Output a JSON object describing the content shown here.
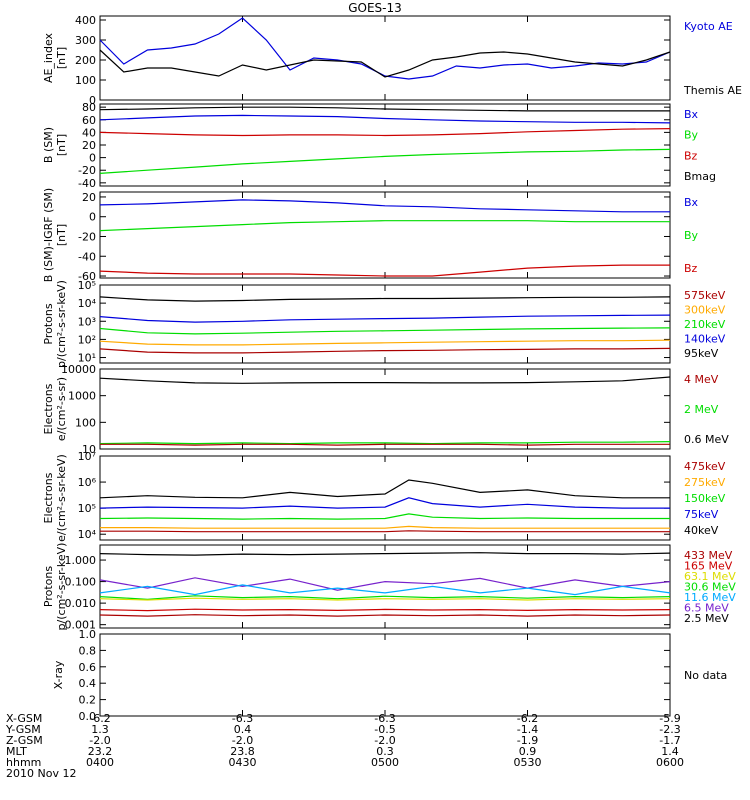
{
  "title": "GOES-13",
  "colors": {
    "black": "#000000",
    "blue": "#0000dd",
    "green": "#00dd00",
    "red": "#cc0000",
    "orange": "#ffaa00",
    "purple": "#7722cc",
    "cyan": "#00aaff",
    "yellow": "#dddd00",
    "darkred": "#aa0000"
  },
  "chart_data": [
    {
      "type": "line",
      "ylabel": [
        "AE_index",
        "[nT]"
      ],
      "yscale": "linear",
      "ylim": [
        0,
        420
      ],
      "yticks": [
        "0",
        "100",
        "200",
        "300",
        "400"
      ],
      "legend": [
        {
          "text": "Kyoto AE",
          "color": "blue"
        },
        {
          "text": "Themis AE",
          "color": "black"
        }
      ],
      "x": [
        0,
        5,
        10,
        15,
        20,
        25,
        30,
        35,
        40,
        45,
        50,
        55,
        60,
        65,
        70,
        75,
        80,
        85,
        90,
        95,
        100,
        105,
        110,
        115,
        120
      ],
      "series": [
        {
          "name": "Kyoto AE",
          "color": "blue",
          "values": [
            300,
            180,
            250,
            260,
            280,
            330,
            410,
            300,
            150,
            210,
            200,
            180,
            120,
            105,
            120,
            170,
            160,
            175,
            180,
            160,
            170,
            185,
            180,
            190,
            240
          ]
        },
        {
          "name": "Themis AE",
          "color": "black",
          "values": [
            250,
            140,
            160,
            160,
            140,
            120,
            175,
            150,
            175,
            200,
            195,
            190,
            115,
            150,
            200,
            215,
            235,
            240,
            230,
            210,
            190,
            180,
            170,
            200,
            240
          ]
        }
      ]
    },
    {
      "type": "line",
      "ylabel": [
        "B (SM)",
        "[nT]"
      ],
      "yscale": "linear",
      "ylim": [
        -45,
        85
      ],
      "yticks": [
        "-40",
        "-20",
        "0",
        "20",
        "40",
        "60",
        "80"
      ],
      "legend": [
        {
          "text": "Bx",
          "color": "blue"
        },
        {
          "text": "By",
          "color": "green"
        },
        {
          "text": "Bz",
          "color": "red"
        },
        {
          "text": "Bmag",
          "color": "black"
        }
      ],
      "x": [
        0,
        10,
        20,
        30,
        40,
        50,
        60,
        70,
        80,
        90,
        100,
        110,
        120
      ],
      "series": [
        {
          "name": "Bx",
          "color": "blue",
          "values": [
            60,
            63,
            66,
            67,
            66,
            65,
            62,
            60,
            58,
            57,
            56,
            56,
            55
          ]
        },
        {
          "name": "By",
          "color": "green",
          "values": [
            -25,
            -20,
            -15,
            -10,
            -6,
            -2,
            2,
            5,
            7,
            9,
            10,
            12,
            13
          ]
        },
        {
          "name": "Bz",
          "color": "red",
          "values": [
            40,
            38,
            36,
            35,
            36,
            36,
            35,
            36,
            38,
            41,
            43,
            45,
            46
          ]
        },
        {
          "name": "Bmag",
          "color": "black",
          "values": [
            76,
            77,
            79,
            80,
            80,
            79,
            77,
            76,
            75,
            74,
            74,
            74,
            74
          ]
        }
      ]
    },
    {
      "type": "line",
      "ylabel": [
        "B (SM)-IGRF (SM)",
        "[nT]"
      ],
      "yscale": "linear",
      "ylim": [
        -62,
        25
      ],
      "yticks": [
        "-60",
        "-40",
        "-20",
        "0",
        "20"
      ],
      "legend": [
        {
          "text": "Bx",
          "color": "blue"
        },
        {
          "text": "By",
          "color": "green"
        },
        {
          "text": "Bz",
          "color": "red"
        }
      ],
      "x": [
        0,
        10,
        20,
        30,
        40,
        50,
        60,
        70,
        80,
        90,
        100,
        110,
        120
      ],
      "series": [
        {
          "name": "Bx",
          "color": "blue",
          "values": [
            12,
            13,
            15,
            17,
            16,
            14,
            11,
            10,
            8,
            7,
            6,
            5,
            5
          ]
        },
        {
          "name": "By",
          "color": "green",
          "values": [
            -14,
            -12,
            -10,
            -8,
            -6,
            -5,
            -4,
            -4,
            -4,
            -4,
            -5,
            -5,
            -5
          ]
        },
        {
          "name": "Bz",
          "color": "red",
          "values": [
            -55,
            -57,
            -58,
            -58,
            -58,
            -59,
            -60,
            -60,
            -56,
            -52,
            -50,
            -49,
            -49
          ]
        }
      ]
    },
    {
      "type": "line",
      "ylabel": [
        "Protons",
        "p/(cm²-s-sr-keV)"
      ],
      "yscale": "log",
      "ylim": [
        5,
        100000
      ],
      "yticks": [
        "10¹",
        "10²",
        "10³",
        "10⁴",
        "10⁵"
      ],
      "ytick_values": [
        10,
        100,
        1000,
        10000,
        100000
      ],
      "legend": [
        {
          "text": "575keV",
          "color": "darkred"
        },
        {
          "text": "300keV",
          "color": "orange"
        },
        {
          "text": "210keV",
          "color": "green"
        },
        {
          "text": "140keV",
          "color": "blue"
        },
        {
          "text": "95keV",
          "color": "black"
        }
      ],
      "x": [
        0,
        10,
        20,
        30,
        40,
        50,
        60,
        70,
        80,
        90,
        100,
        110,
        120
      ],
      "series": [
        {
          "name": "95keV",
          "color": "black",
          "values": [
            22000,
            15000,
            13000,
            14000,
            16000,
            17000,
            18000,
            18000,
            19000,
            20000,
            21000,
            21000,
            22000
          ]
        },
        {
          "name": "140keV",
          "color": "blue",
          "values": [
            1800,
            1100,
            900,
            1000,
            1200,
            1300,
            1400,
            1500,
            1700,
            1900,
            2000,
            2100,
            2200
          ]
        },
        {
          "name": "210keV",
          "color": "green",
          "values": [
            400,
            230,
            200,
            220,
            250,
            280,
            300,
            320,
            350,
            380,
            400,
            420,
            430
          ]
        },
        {
          "name": "300keV",
          "color": "orange",
          "values": [
            80,
            55,
            50,
            50,
            55,
            60,
            65,
            70,
            75,
            80,
            85,
            85,
            90
          ]
        },
        {
          "name": "575keV",
          "color": "darkred",
          "values": [
            30,
            20,
            18,
            18,
            20,
            22,
            24,
            25,
            27,
            28,
            30,
            30,
            32
          ]
        }
      ]
    },
    {
      "type": "line",
      "ylabel": [
        "Electrons",
        "e/(cm²-s-sr)"
      ],
      "yscale": "log",
      "ylim": [
        10,
        10000
      ],
      "yticks": [
        "10",
        "100",
        "1000",
        "10000"
      ],
      "ytick_values": [
        10,
        100,
        1000,
        10000
      ],
      "legend": [
        {
          "text": "4 MeV",
          "color": "darkred"
        },
        {
          "text": "2 MeV",
          "color": "green"
        },
        {
          "text": "0.6 MeV",
          "color": "black"
        }
      ],
      "x": [
        0,
        10,
        20,
        30,
        40,
        50,
        60,
        70,
        80,
        90,
        100,
        110,
        120
      ],
      "series": [
        {
          "name": "0.6 MeV",
          "color": "black",
          "values": [
            4500,
            3600,
            3000,
            2900,
            3000,
            3100,
            3100,
            3000,
            3000,
            3100,
            3300,
            3600,
            5000
          ]
        },
        {
          "name": "2 MeV",
          "color": "green",
          "values": [
            16,
            17,
            16,
            17,
            16,
            17,
            17,
            16,
            17,
            17,
            18,
            18,
            19
          ]
        },
        {
          "name": "4 MeV",
          "color": "darkred",
          "values": [
            15,
            15,
            14,
            15,
            15,
            14,
            15,
            15,
            15,
            14,
            15,
            15,
            15
          ]
        }
      ]
    },
    {
      "type": "line",
      "ylabel": [
        "Electrons",
        "e/(cm²-s-sr-keV)"
      ],
      "yscale": "log",
      "ylim": [
        6000,
        10000000
      ],
      "yticks": [
        "10⁴",
        "10⁵",
        "10⁶",
        "10⁷"
      ],
      "ytick_values": [
        10000,
        100000,
        1000000,
        10000000
      ],
      "legend": [
        {
          "text": "475keV",
          "color": "darkred"
        },
        {
          "text": "275keV",
          "color": "orange"
        },
        {
          "text": "150keV",
          "color": "green"
        },
        {
          "text": "75keV",
          "color": "blue"
        },
        {
          "text": "40keV",
          "color": "black"
        }
      ],
      "x": [
        0,
        10,
        20,
        30,
        40,
        50,
        60,
        65,
        70,
        80,
        90,
        100,
        110,
        120
      ],
      "series": [
        {
          "name": "40keV",
          "color": "black",
          "values": [
            250000,
            300000,
            260000,
            250000,
            400000,
            280000,
            350000,
            1200000,
            900000,
            400000,
            500000,
            300000,
            250000,
            250000
          ]
        },
        {
          "name": "75keV",
          "color": "blue",
          "values": [
            100000,
            110000,
            105000,
            100000,
            120000,
            100000,
            110000,
            250000,
            150000,
            110000,
            140000,
            110000,
            100000,
            100000
          ]
        },
        {
          "name": "150keV",
          "color": "green",
          "values": [
            40000,
            42000,
            40000,
            38000,
            40000,
            38000,
            40000,
            60000,
            45000,
            40000,
            42000,
            40000,
            40000,
            40000
          ]
        },
        {
          "name": "275keV",
          "color": "orange",
          "values": [
            18000,
            18000,
            17000,
            17000,
            17000,
            17000,
            17000,
            20000,
            18000,
            17000,
            17000,
            17000,
            17000,
            17000
          ]
        },
        {
          "name": "475keV",
          "color": "darkred",
          "values": [
            13000,
            13000,
            12500,
            12500,
            12500,
            12500,
            12500,
            13500,
            13000,
            12500,
            12500,
            12500,
            12500,
            12500
          ]
        }
      ]
    },
    {
      "type": "line",
      "ylabel": [
        "Protons",
        "p/(cm²-s-sr-keV)"
      ],
      "yscale": "log",
      "ylim": [
        0.0007,
        5
      ],
      "yticks": [
        "0.001",
        "0.010",
        "0.100",
        "1.000"
      ],
      "ytick_values": [
        0.001,
        0.01,
        0.1,
        1
      ],
      "legend": [
        {
          "text": "433 MeV",
          "color": "darkred"
        },
        {
          "text": "165 MeV",
          "color": "red"
        },
        {
          "text": "63.1 MeV",
          "color": "yellow"
        },
        {
          "text": "30.6 MeV",
          "color": "green"
        },
        {
          "text": "11.6 MeV",
          "color": "cyan"
        },
        {
          "text": "6.5 MeV",
          "color": "purple"
        },
        {
          "text": "2.5 MeV",
          "color": "black"
        }
      ],
      "x": [
        0,
        10,
        20,
        30,
        40,
        50,
        60,
        70,
        80,
        90,
        100,
        110,
        120
      ],
      "series": [
        {
          "name": "2.5 MeV",
          "color": "black",
          "values": [
            2.0,
            1.8,
            1.7,
            1.9,
            1.8,
            1.9,
            2.0,
            2.1,
            2.2,
            2.0,
            2.0,
            1.9,
            2.1
          ]
        },
        {
          "name": "6.5 MeV",
          "color": "purple",
          "values": [
            0.12,
            0.05,
            0.15,
            0.06,
            0.13,
            0.04,
            0.1,
            0.08,
            0.14,
            0.05,
            0.12,
            0.06,
            0.1
          ]
        },
        {
          "name": "11.6 MeV",
          "color": "cyan",
          "values": [
            0.03,
            0.06,
            0.025,
            0.07,
            0.03,
            0.05,
            0.03,
            0.06,
            0.03,
            0.05,
            0.025,
            0.06,
            0.03
          ]
        },
        {
          "name": "30.6 MeV",
          "color": "green",
          "values": [
            0.02,
            0.015,
            0.022,
            0.018,
            0.02,
            0.016,
            0.021,
            0.018,
            0.02,
            0.017,
            0.02,
            0.018,
            0.02
          ]
        },
        {
          "name": "63.1 MeV",
          "color": "yellow",
          "values": [
            0.016,
            0.014,
            0.017,
            0.015,
            0.016,
            0.014,
            0.016,
            0.015,
            0.016,
            0.014,
            0.016,
            0.015,
            0.016
          ]
        },
        {
          "name": "165 MeV",
          "color": "red",
          "values": [
            0.005,
            0.0045,
            0.0052,
            0.0048,
            0.005,
            0.0046,
            0.0051,
            0.0048,
            0.005,
            0.0046,
            0.005,
            0.0048,
            0.005
          ]
        },
        {
          "name": "433 MeV",
          "color": "darkred",
          "values": [
            0.0028,
            0.0025,
            0.0029,
            0.0026,
            0.0028,
            0.0025,
            0.0028,
            0.0026,
            0.0028,
            0.0025,
            0.0028,
            0.0026,
            0.0028
          ]
        }
      ]
    },
    {
      "type": "line",
      "ylabel": [
        "X-ray"
      ],
      "yscale": "linear",
      "ylim": [
        0,
        1
      ],
      "yticks": [
        "0.0",
        "0.2",
        "0.4",
        "0.6",
        "0.8",
        "1.0"
      ],
      "legend": [
        {
          "text": "No data",
          "color": "black"
        }
      ],
      "x": [],
      "series": []
    }
  ],
  "xaxis": {
    "ticks": [
      {
        "x": 0,
        "values": [
          "-6.2",
          "1.3",
          "-2.0",
          "23.2",
          "0400"
        ]
      },
      {
        "x": 30,
        "values": [
          "-6.3",
          "0.4",
          "-2.0",
          "23.8",
          "0430"
        ]
      },
      {
        "x": 60,
        "values": [
          "-6.3",
          "-0.5",
          "-2.0",
          "0.3",
          "0500"
        ]
      },
      {
        "x": 90,
        "values": [
          "-6.2",
          "-1.4",
          "-1.9",
          "0.9",
          "0530"
        ]
      },
      {
        "x": 120,
        "values": [
          "-5.9",
          "-2.3",
          "-1.7",
          "1.4",
          "0600"
        ]
      }
    ],
    "row_labels": [
      "X-GSM",
      "Y-GSM",
      "Z-GSM",
      "MLT",
      "hhmm"
    ],
    "date": "2010 Nov 12"
  }
}
